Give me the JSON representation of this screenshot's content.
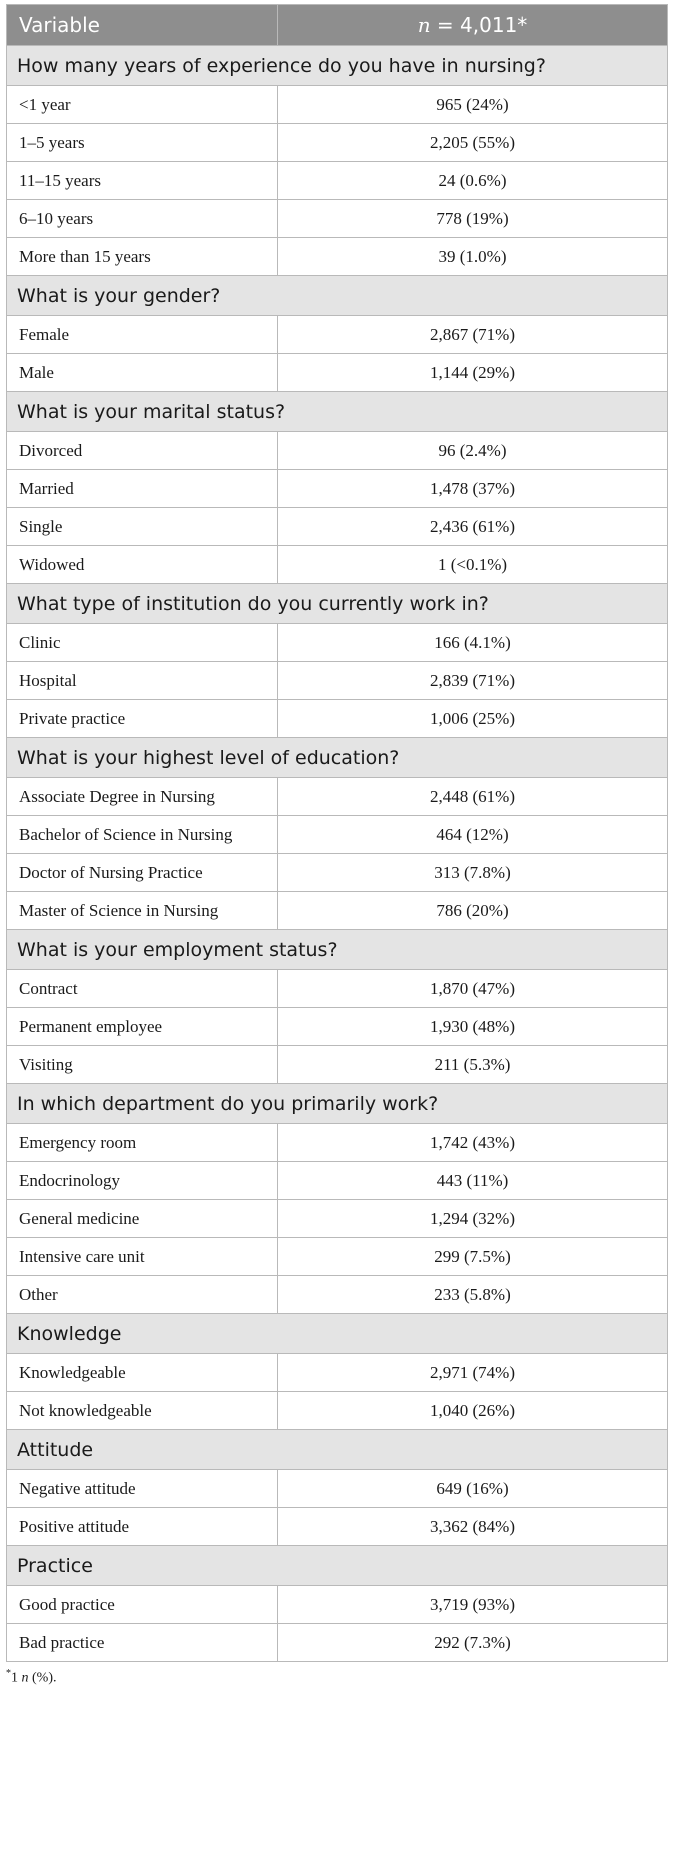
{
  "header": {
    "col1": "Variable",
    "col2_italic": "n",
    "col2_rest": " = 4,011*"
  },
  "sections": [
    {
      "title": "How many years of experience do you have in nursing?",
      "rows": [
        {
          "label": "<1 year",
          "value": "965 (24%)"
        },
        {
          "label": "1–5 years",
          "value": "2,205 (55%)"
        },
        {
          "label": "11–15 years",
          "value": "24 (0.6%)"
        },
        {
          "label": "6–10 years",
          "value": "778 (19%)"
        },
        {
          "label": "More than 15 years",
          "value": "39 (1.0%)"
        }
      ]
    },
    {
      "title": "What is your gender?",
      "rows": [
        {
          "label": "Female",
          "value": "2,867 (71%)"
        },
        {
          "label": "Male",
          "value": "1,144 (29%)"
        }
      ]
    },
    {
      "title": "What is your marital status?",
      "rows": [
        {
          "label": "Divorced",
          "value": "96 (2.4%)"
        },
        {
          "label": "Married",
          "value": "1,478 (37%)"
        },
        {
          "label": "Single",
          "value": "2,436 (61%)"
        },
        {
          "label": "Widowed",
          "value": "1 (<0.1%)"
        }
      ]
    },
    {
      "title": "What type of institution do you currently work in?",
      "rows": [
        {
          "label": "Clinic",
          "value": "166 (4.1%)"
        },
        {
          "label": "Hospital",
          "value": "2,839 (71%)"
        },
        {
          "label": "Private practice",
          "value": "1,006 (25%)"
        }
      ]
    },
    {
      "title": "What is your highest level of education?",
      "rows": [
        {
          "label": "Associate Degree in Nursing",
          "value": "2,448 (61%)"
        },
        {
          "label": "Bachelor of Science in Nursing",
          "value": "464 (12%)"
        },
        {
          "label": "Doctor of Nursing Practice",
          "value": "313 (7.8%)"
        },
        {
          "label": "Master of Science in Nursing",
          "value": "786 (20%)"
        }
      ]
    },
    {
      "title": "What is your employment status?",
      "rows": [
        {
          "label": "Contract",
          "value": "1,870 (47%)"
        },
        {
          "label": "Permanent employee",
          "value": "1,930 (48%)"
        },
        {
          "label": "Visiting",
          "value": "211 (5.3%)"
        }
      ]
    },
    {
      "title": "In which department do you primarily work?",
      "rows": [
        {
          "label": "Emergency room",
          "value": "1,742 (43%)"
        },
        {
          "label": "Endocrinology",
          "value": "443 (11%)"
        },
        {
          "label": "General medicine",
          "value": "1,294 (32%)"
        },
        {
          "label": "Intensive care unit",
          "value": "299 (7.5%)"
        },
        {
          "label": "Other",
          "value": "233 (5.8%)"
        }
      ]
    },
    {
      "title": "Knowledge",
      "rows": [
        {
          "label": "Knowledgeable",
          "value": "2,971 (74%)"
        },
        {
          "label": "Not knowledgeable",
          "value": "1,040 (26%)"
        }
      ]
    },
    {
      "title": "Attitude",
      "rows": [
        {
          "label": "Negative attitude",
          "value": "649 (16%)"
        },
        {
          "label": "Positive attitude",
          "value": "3,362 (84%)"
        }
      ]
    },
    {
      "title": "Practice",
      "rows": [
        {
          "label": "Good practice",
          "value": "3,719 (93%)"
        },
        {
          "label": "Bad practice",
          "value": "292 (7.3%)"
        }
      ]
    }
  ],
  "footnote": {
    "marker": "*",
    "text_a": "1 ",
    "text_italic": "n",
    "text_b": " (%)."
  },
  "colors": {
    "header_bg": "#8e8e8e",
    "section_bg": "#e4e4e4",
    "border": "#b9b9b9"
  }
}
